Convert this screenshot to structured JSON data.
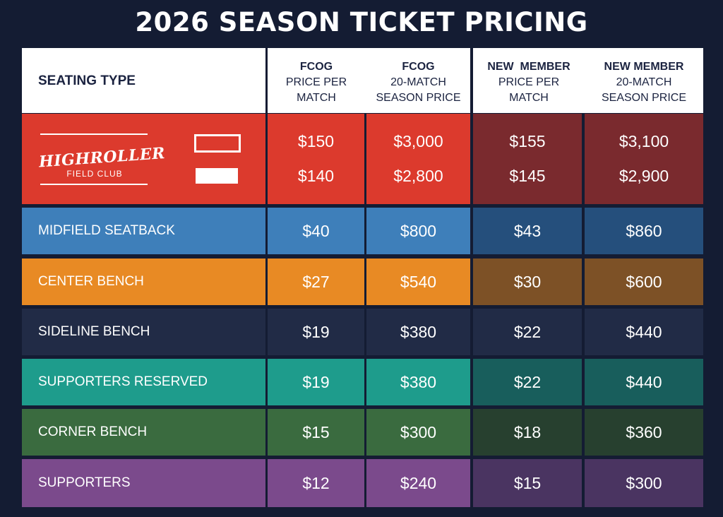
{
  "title": "2026 SEASON TICKET PRICING",
  "headers": {
    "seating_type": "SEATING TYPE",
    "columns": [
      {
        "group": "FCOG",
        "line1": "PRICE PER",
        "line2": "MATCH"
      },
      {
        "group": "FCOG",
        "line1": "20-MATCH",
        "line2": "SEASON PRICE"
      },
      {
        "group": "NEW  MEMBER",
        "line1": "PRICE PER",
        "line2": "MATCH"
      },
      {
        "group": "NEW MEMBER",
        "line1": "20-MATCH",
        "line2": "SEASON PRICE"
      }
    ]
  },
  "highroller": {
    "logo_main": "HIGHROLLER",
    "logo_sub": "FIELD CLUB",
    "fcog_match": [
      "$150",
      "$140"
    ],
    "fcog_season": [
      "$3,000",
      "$2,800"
    ],
    "new_match": [
      "$155",
      "$145"
    ],
    "new_season": [
      "$3,100",
      "$2,900"
    ],
    "colors": {
      "fcog": "#dc3a2d",
      "new": "#7a2a2e"
    }
  },
  "rows": [
    {
      "label": "MIDFIELD SEATBACK",
      "fcog_match": "$40",
      "fcog_season": "$800",
      "new_match": "$43",
      "new_season": "$860",
      "fcog_color": "#3e7fba",
      "new_color": "#254f7c"
    },
    {
      "label": "CENTER BENCH",
      "fcog_match": "$27",
      "fcog_season": "$540",
      "new_match": "$30",
      "new_season": "$600",
      "fcog_color": "#e88a24",
      "new_color": "#7d5126"
    },
    {
      "label": "SIDELINE BENCH",
      "fcog_match": "$19",
      "fcog_season": "$380",
      "new_match": "$22",
      "new_season": "$440",
      "fcog_color": "#212b46",
      "new_color": "#212b46"
    },
    {
      "label": "SUPPORTERS RESERVED",
      "fcog_match": "$19",
      "fcog_season": "$380",
      "new_match": "$22",
      "new_season": "$440",
      "fcog_color": "#1e9c8c",
      "new_color": "#185e5c"
    },
    {
      "label": "CORNER BENCH",
      "fcog_match": "$15",
      "fcog_season": "$300",
      "new_match": "$18",
      "new_season": "$360",
      "fcog_color": "#3a6b3f",
      "new_color": "#27402f"
    },
    {
      "label": "SUPPORTERS",
      "fcog_match": "$12",
      "fcog_season": "$240",
      "new_match": "$15",
      "new_season": "$300",
      "fcog_color": "#7b4a8c",
      "new_color": "#4a3461"
    }
  ]
}
